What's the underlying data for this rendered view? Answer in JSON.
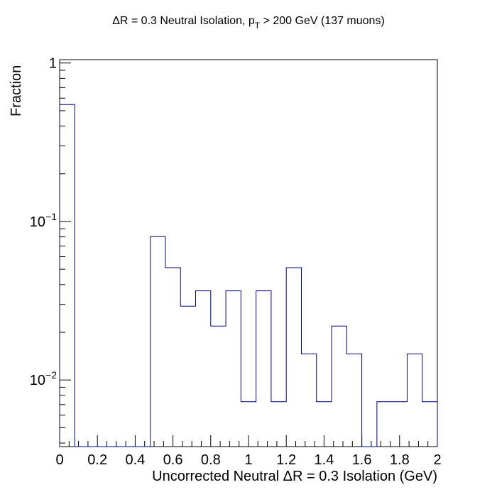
{
  "chart_data": {
    "type": "bar",
    "title_main": "ΔR = 0.3 Neutral Isolation, p",
    "title_sub": "T",
    "title_rest": " > 200 GeV (137 muons)",
    "xlabel": "Uncorrected Neutral ΔR = 0.3 Isolation (GeV)",
    "ylabel": "Fraction",
    "xlim": [
      0,
      2
    ],
    "ylim": [
      0.0038,
      1.05
    ],
    "log_y": true,
    "grid": false,
    "bin_edges": [
      0,
      0.08,
      0.16,
      0.24,
      0.32,
      0.4,
      0.48,
      0.56,
      0.64,
      0.72,
      0.8,
      0.88,
      0.96,
      1.04,
      1.12,
      1.2,
      1.28,
      1.36,
      1.44,
      1.52,
      1.6,
      1.68,
      1.76,
      1.84,
      1.92,
      2.0
    ],
    "values": [
      0.547,
      0,
      0,
      0,
      0,
      0,
      0.0803,
      0.0511,
      0.0292,
      0.0365,
      0.0219,
      0.0365,
      0.0073,
      0.0365,
      0.0073,
      0.0511,
      0.0146,
      0.0073,
      0.0219,
      0.0146,
      0,
      0.0073,
      0.0073,
      0.0146,
      0.0073
    ],
    "x_ticks": [
      {
        "value": 0,
        "label": "0"
      },
      {
        "value": 0.2,
        "label": "0.2"
      },
      {
        "value": 0.4,
        "label": "0.4"
      },
      {
        "value": 0.6,
        "label": "0.6"
      },
      {
        "value": 0.8,
        "label": "0.8"
      },
      {
        "value": 1.0,
        "label": "1"
      },
      {
        "value": 1.2,
        "label": "1.2"
      },
      {
        "value": 1.4,
        "label": "1.4"
      },
      {
        "value": 1.6,
        "label": "1.6"
      },
      {
        "value": 1.8,
        "label": "1.8"
      },
      {
        "value": 2.0,
        "label": "2"
      }
    ],
    "y_major_ticks": [
      {
        "value": 1,
        "base": "1",
        "exp": ""
      },
      {
        "value": 0.1,
        "base": "10",
        "exp": "−1"
      },
      {
        "value": 0.01,
        "base": "10",
        "exp": "−2"
      }
    ],
    "line_color": "#000080"
  }
}
